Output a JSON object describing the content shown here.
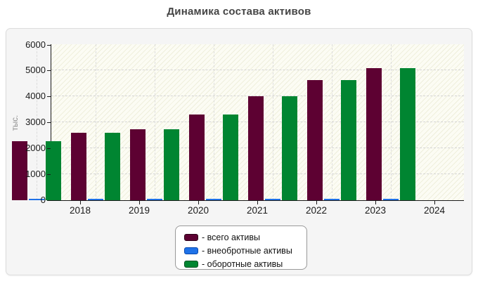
{
  "chart_data": {
    "type": "bar",
    "title": "Динамика состава активов",
    "ylabel": "тыс.",
    "xlabel": "",
    "categories": [
      "2018",
      "2019",
      "2020",
      "2021",
      "2022",
      "2023",
      "2024"
    ],
    "series": [
      {
        "name": "всего активы",
        "legend_label": "- всего активы",
        "color": "#5d0132",
        "swatch_border": "#2b0017",
        "values": [
          2270,
          2600,
          2730,
          3300,
          4020,
          4640,
          5090
        ]
      },
      {
        "name": "внеобротные активы",
        "legend_label": "- внеобротные активы",
        "color": "#1f72e8",
        "swatch_border": "#0a49ad",
        "values": [
          40,
          40,
          40,
          40,
          40,
          40,
          40
        ]
      },
      {
        "name": "оборотные активы",
        "legend_label": "- оборотные активы",
        "color": "#008531",
        "swatch_border": "#005220",
        "values": [
          2270,
          2600,
          2730,
          3300,
          4020,
          4640,
          5090
        ]
      }
    ],
    "ylim": [
      0,
      6000
    ],
    "ytick_step": 1000,
    "yticks": [
      0,
      1000,
      2000,
      3000,
      4000,
      5000,
      6000
    ],
    "grid": true,
    "legend_position": "bottom-center"
  },
  "colors": {
    "panel_background": "#f5f5f5",
    "panel_border": "#dcdcdc",
    "plot_background": "#fcfcf4",
    "plot_hatch": "#efefdc",
    "gridline": "#d4d4d4",
    "axis": "#1a1a1a",
    "title_text": "#454545",
    "axis_unit_text": "#8d8d8d",
    "legend_border": "#999999"
  }
}
